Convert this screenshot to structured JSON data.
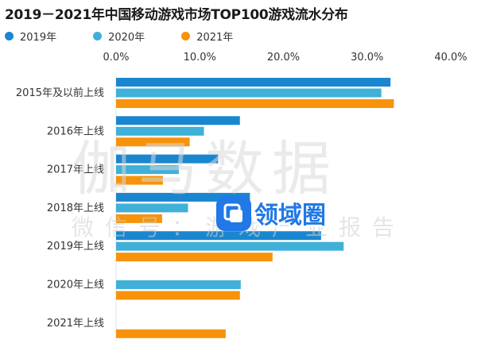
{
  "chart_data": {
    "type": "bar",
    "orientation": "horizontal",
    "title": "2019－2021年中国移动游戏市场TOP100游戏流水分布",
    "categories": [
      "2015年及以前上线",
      "2016年上线",
      "2017年上线",
      "2018年上线",
      "2019年上线",
      "2020年上线",
      "2021年上线"
    ],
    "series": [
      {
        "name": "2019年",
        "color": "#1a86d0",
        "values": [
          32.8,
          14.8,
          12.2,
          16.0,
          24.5,
          null,
          null
        ]
      },
      {
        "name": "2020年",
        "color": "#3fb0d8",
        "values": [
          31.7,
          10.5,
          7.5,
          8.6,
          27.2,
          14.9,
          null
        ]
      },
      {
        "name": "2021年",
        "color": "#f7930a",
        "values": [
          33.2,
          8.8,
          5.6,
          5.5,
          18.7,
          14.8,
          13.1
        ]
      }
    ],
    "xlim": [
      0,
      40
    ],
    "x_ticks": [
      "0.0%",
      "10.0%",
      "20.0%",
      "30.0%",
      "40.0%"
    ],
    "x_tick_values": [
      0,
      10,
      20,
      30,
      40
    ],
    "axis_position": "top",
    "legend_position": "top-left",
    "grid": false
  },
  "watermark": {
    "main": "伽马数据",
    "sub": "微信号：游戏产业报告",
    "logo_text": "领域圈"
  }
}
